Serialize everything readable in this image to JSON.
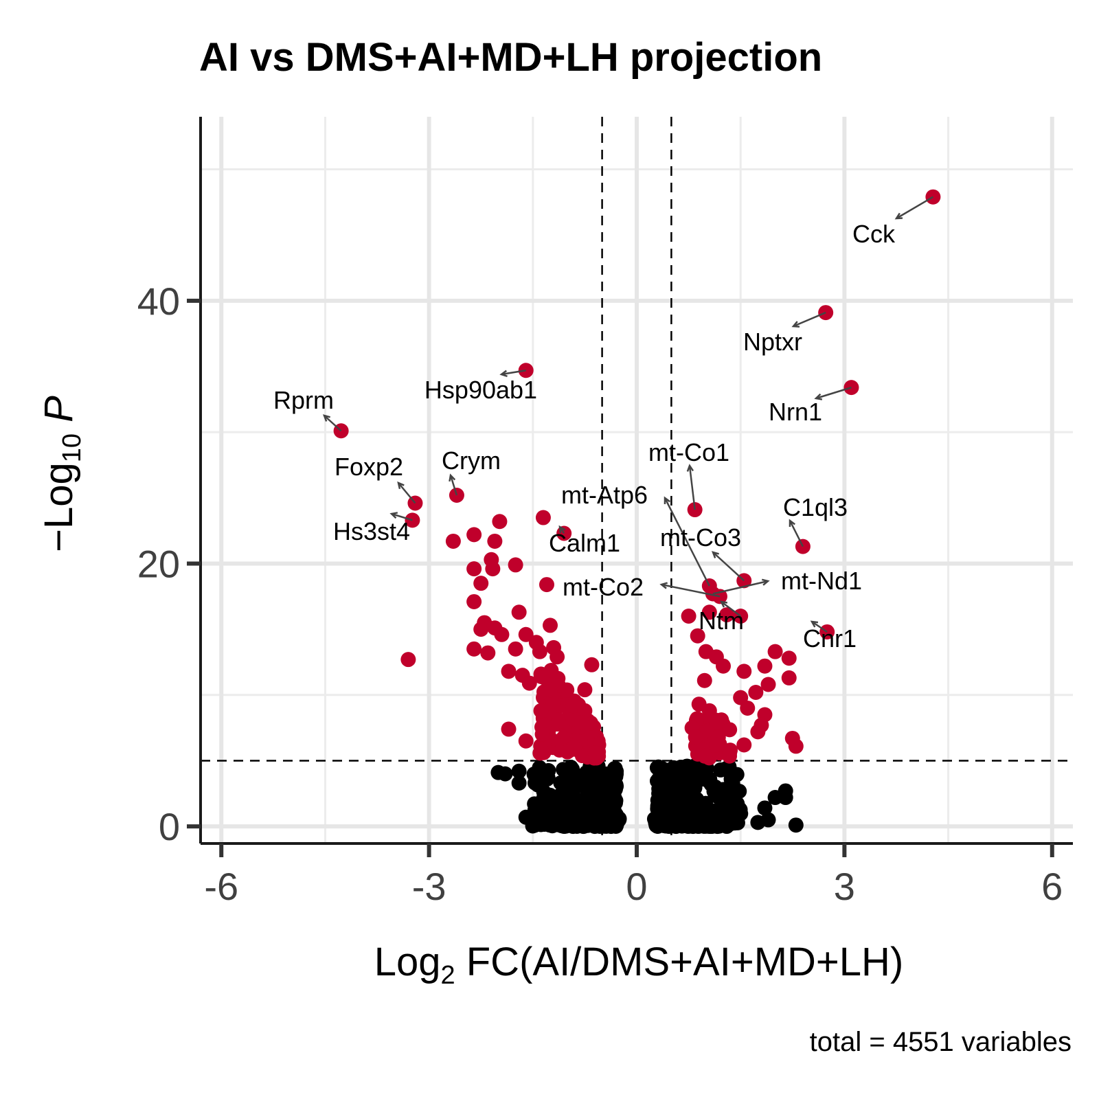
{
  "chart_data": {
    "type": "scatter",
    "title": "AI vs DMS+AI+MD+LH projection",
    "xlabel": {
      "prefix": "Log",
      "sub": "2",
      "suffix": " FC(AI/DMS+AI+MD+LH)"
    },
    "ylabel": {
      "prefix": "−Log",
      "sub": "10",
      "suffix": " P"
    },
    "caption": "total = 4551 variables",
    "xlim": [
      -6.3,
      6.3
    ],
    "ylim": [
      -1.3,
      54
    ],
    "x_ticks": [
      -6,
      -3,
      0,
      3,
      6
    ],
    "x_tick_labels": [
      "-6",
      "-3",
      "0",
      "3",
      "6"
    ],
    "y_ticks": [
      0,
      20,
      40
    ],
    "y_tick_labels": [
      "0",
      "20",
      "40"
    ],
    "y_minor_grid": [
      10,
      30,
      50
    ],
    "grid": true,
    "thresholds": {
      "fc": [
        -0.5,
        0.5
      ],
      "p": 5
    },
    "colors": {
      "significant": "#C0002B",
      "not_significant": "#000000"
    },
    "labeled_points": [
      {
        "gene": "Cck",
        "x": 4.28,
        "y": 47.9
      },
      {
        "gene": "Nptxr",
        "x": 2.73,
        "y": 39.1
      },
      {
        "gene": "Nrn1",
        "x": 3.1,
        "y": 33.4
      },
      {
        "gene": "Hsp90ab1",
        "x": -1.6,
        "y": 34.7
      },
      {
        "gene": "Rprm",
        "x": -4.27,
        "y": 30.1
      },
      {
        "gene": "Foxp2",
        "x": -3.2,
        "y": 24.6
      },
      {
        "gene": "Hs3st4",
        "x": -3.24,
        "y": 23.3
      },
      {
        "gene": "Crym",
        "x": -2.6,
        "y": 25.2
      },
      {
        "gene": "mt-Co1",
        "x": 0.84,
        "y": 24.1
      },
      {
        "gene": "mt-Atp6",
        "x": 1.05,
        "y": 18.3
      },
      {
        "gene": "Calm1",
        "x": -1.05,
        "y": 22.3
      },
      {
        "gene": "C1ql3",
        "x": 2.4,
        "y": 21.3
      },
      {
        "gene": "mt-Co3",
        "x": 1.55,
        "y": 18.7
      },
      {
        "gene": "mt-Co2",
        "x": 1.2,
        "y": 17.5
      },
      {
        "gene": "mt-Nd1",
        "x": 1.1,
        "y": 17.7
      },
      {
        "gene": "Ntm",
        "x": 1.5,
        "y": 16.0
      },
      {
        "gene": "Cnr1",
        "x": 2.75,
        "y": 14.8
      }
    ],
    "other_significant_points": [
      [
        -3.3,
        12.7
      ],
      [
        -2.65,
        21.7
      ],
      [
        -2.35,
        22.2
      ],
      [
        -1.98,
        23.2
      ],
      [
        -1.35,
        23.5
      ],
      [
        -2.05,
        21.7
      ],
      [
        -2.35,
        19.6
      ],
      [
        -2.1,
        20.3
      ],
      [
        -2.08,
        19.6
      ],
      [
        -1.75,
        19.9
      ],
      [
        -2.25,
        18.5
      ],
      [
        -1.3,
        18.4
      ],
      [
        -2.35,
        17.1
      ],
      [
        -1.7,
        16.3
      ],
      [
        -2.2,
        15.5
      ],
      [
        -2.05,
        15.1
      ],
      [
        -1.25,
        15.3
      ],
      [
        -2.25,
        15.0
      ],
      [
        -1.95,
        14.6
      ],
      [
        -1.6,
        14.6
      ],
      [
        -2.35,
        13.5
      ],
      [
        -2.15,
        13.2
      ],
      [
        -1.75,
        13.5
      ],
      [
        -1.45,
        14.0
      ],
      [
        -1.4,
        13.3
      ],
      [
        -1.2,
        13.6
      ],
      [
        -1.15,
        12.9
      ],
      [
        -0.65,
        12.3
      ],
      [
        -1.85,
        11.8
      ],
      [
        -1.65,
        11.5
      ],
      [
        -1.55,
        10.9
      ],
      [
        -1.25,
        10.4
      ],
      [
        -0.75,
        10.4
      ],
      [
        -1.85,
        7.4
      ],
      [
        -0.75,
        8.8
      ],
      [
        -0.8,
        7.9
      ],
      [
        -0.55,
        6.2
      ],
      [
        -0.6,
        5.6
      ],
      [
        -0.9,
        6.0
      ],
      [
        -1.6,
        6.5
      ],
      [
        1.05,
        16.3
      ],
      [
        1.3,
        16.1
      ],
      [
        0.75,
        16.0
      ],
      [
        0.88,
        14.5
      ],
      [
        1.0,
        13.3
      ],
      [
        1.15,
        12.9
      ],
      [
        1.25,
        12.2
      ],
      [
        0.98,
        11.1
      ],
      [
        1.55,
        11.8
      ],
      [
        1.85,
        12.2
      ],
      [
        2.0,
        13.3
      ],
      [
        2.2,
        12.8
      ],
      [
        2.2,
        11.3
      ],
      [
        1.72,
        10.2
      ],
      [
        1.9,
        10.8
      ],
      [
        0.9,
        9.3
      ],
      [
        1.05,
        8.8
      ],
      [
        1.15,
        7.9
      ],
      [
        1.5,
        9.8
      ],
      [
        1.6,
        9.0
      ],
      [
        1.85,
        8.5
      ],
      [
        1.8,
        7.7
      ],
      [
        0.8,
        7.5
      ],
      [
        0.85,
        6.8
      ],
      [
        1.15,
        6.2
      ],
      [
        1.35,
        5.8
      ],
      [
        1.55,
        6.2
      ],
      [
        1.75,
        7.2
      ],
      [
        2.25,
        6.7
      ],
      [
        2.3,
        6.1
      ]
    ]
  }
}
